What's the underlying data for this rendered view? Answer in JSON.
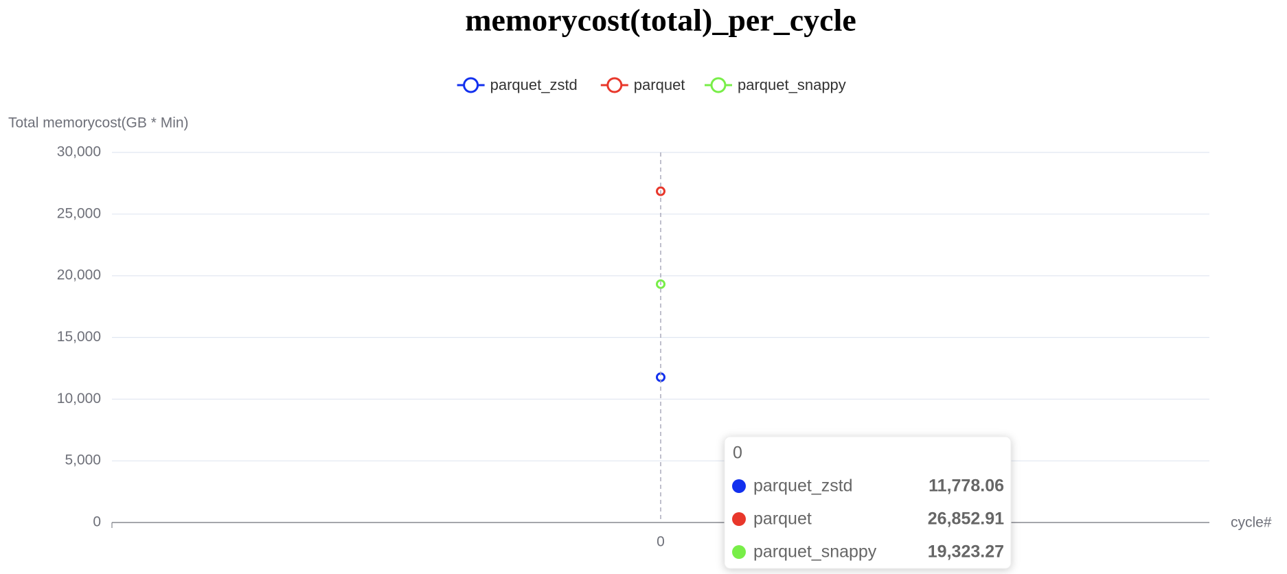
{
  "chart_data": {
    "type": "line",
    "title": "memorycost(total)_per_cycle",
    "y_label": "Total memorycost(GB * Min)",
    "x_label": "cycle#",
    "categories": [
      "0"
    ],
    "series": [
      {
        "name": "parquet_zstd",
        "color": "#1230ee",
        "values": [
          11778.06
        ],
        "value_labels": [
          "11,778.06"
        ]
      },
      {
        "name": "parquet",
        "color": "#e8372b",
        "values": [
          26852.91
        ],
        "value_labels": [
          "26,852.91"
        ]
      },
      {
        "name": "parquet_snappy",
        "color": "#78ee48",
        "values": [
          19323.27
        ],
        "value_labels": [
          "19,323.27"
        ]
      }
    ],
    "ylim": [
      0,
      30000
    ],
    "yticks": [
      0,
      {
        "value": 5000,
        "label": "5,000"
      },
      {
        "value": 10000,
        "label": "10,000"
      },
      {
        "value": 15000,
        "label": "15,000"
      },
      {
        "value": 20000,
        "label": "20,000"
      },
      {
        "value": 25000,
        "label": "25,000"
      },
      {
        "value": 30000,
        "label": "30,000"
      }
    ],
    "grid": true
  }
}
